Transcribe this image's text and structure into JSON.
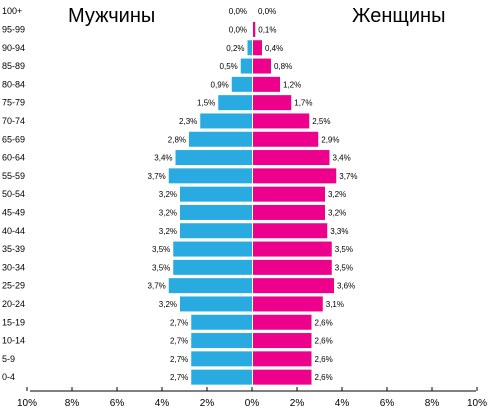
{
  "chart_data": {
    "type": "bar",
    "orientation": "horizontal",
    "layout": "population-pyramid",
    "left_title": "Мужчины",
    "right_title": "Женщины",
    "categories": [
      "100+",
      "95-99",
      "90-94",
      "85-89",
      "80-84",
      "75-79",
      "70-74",
      "65-69",
      "60-64",
      "55-59",
      "50-54",
      "45-49",
      "40-44",
      "35-39",
      "30-34",
      "25-29",
      "20-24",
      "15-19",
      "10-14",
      "5-9",
      "0-4"
    ],
    "series": [
      {
        "name": "Мужчины",
        "side": "left",
        "color": "#29abe2",
        "values": [
          0.0,
          0.0,
          0.2,
          0.5,
          0.9,
          1.5,
          2.3,
          2.8,
          3.4,
          3.7,
          3.2,
          3.2,
          3.2,
          3.5,
          3.5,
          3.7,
          3.2,
          2.7,
          2.7,
          2.7,
          2.7
        ],
        "labels": [
          "0,0%",
          "0,0%",
          "0,2%",
          "0,5%",
          "0,9%",
          "1,5%",
          "2,3%",
          "2,8%",
          "3,4%",
          "3,7%",
          "3,2%",
          "3,2%",
          "3,2%",
          "3,5%",
          "3,5%",
          "3,7%",
          "3,2%",
          "2,7%",
          "2,7%",
          "2,7%",
          "2,7%"
        ]
      },
      {
        "name": "Женщины",
        "side": "right",
        "color": "#ec008c",
        "values": [
          0.0,
          0.1,
          0.4,
          0.8,
          1.2,
          1.7,
          2.5,
          2.9,
          3.4,
          3.7,
          3.2,
          3.2,
          3.3,
          3.5,
          3.5,
          3.6,
          3.1,
          2.6,
          2.6,
          2.6,
          2.6
        ],
        "labels": [
          "0,0%",
          "0,1%",
          "0,4%",
          "0,8%",
          "1,2%",
          "1,7%",
          "2,5%",
          "2,9%",
          "3,4%",
          "3,7%",
          "3,2%",
          "3,2%",
          "3,3%",
          "3,5%",
          "3,5%",
          "3,6%",
          "3,1%",
          "2,6%",
          "2,6%",
          "2,6%",
          "2,6%"
        ]
      }
    ],
    "x_ticks": [
      "10%",
      "8%",
      "6%",
      "4%",
      "2%",
      "0%",
      "2%",
      "4%",
      "6%",
      "8%",
      "10%"
    ],
    "xlim": [
      -10,
      10
    ],
    "grid": false
  }
}
